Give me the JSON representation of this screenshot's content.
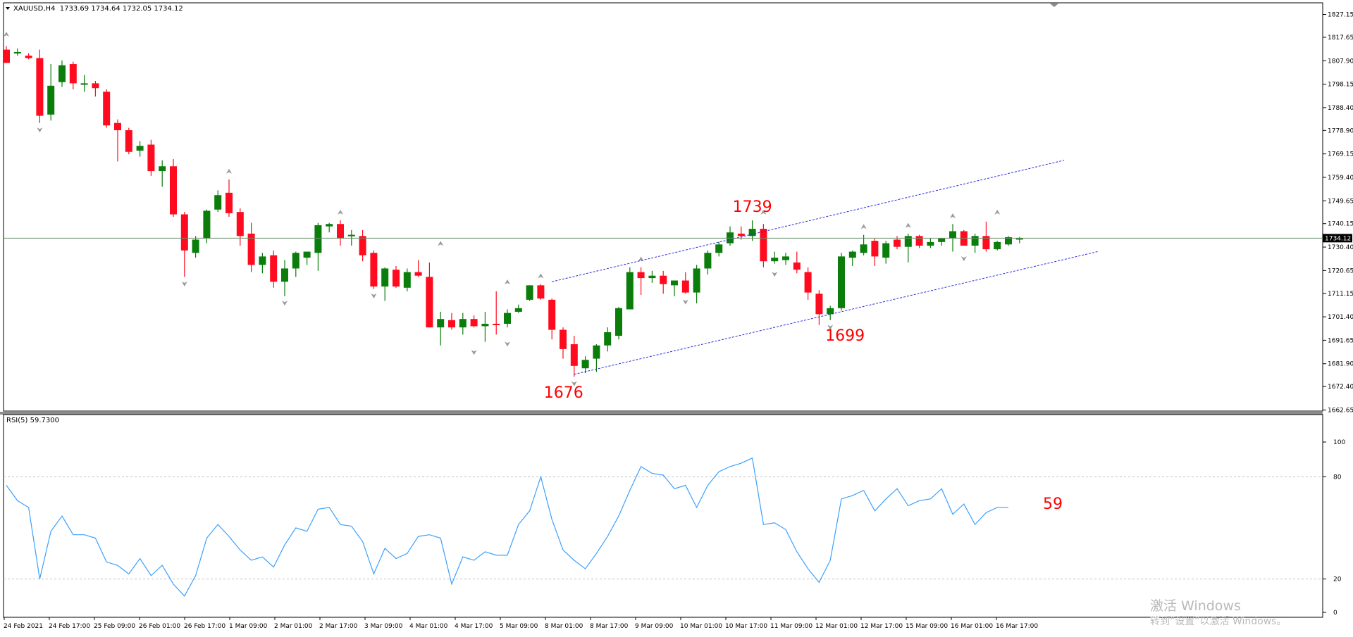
{
  "window": {
    "symbol_header": "XAUUSD,H4  1733.69 1734.64 1732.05 1734.12",
    "current_price_label": "1734.12"
  },
  "price_axis": {
    "labels": [
      "1827.15",
      "1817.65",
      "1807.90",
      "1798.15",
      "1788.40",
      "1778.90",
      "1769.15",
      "1759.40",
      "1749.65",
      "1740.15",
      "1730.40",
      "1720.65",
      "1711.15",
      "1701.40",
      "1691.65",
      "1681.90",
      "1672.40",
      "1662.65"
    ]
  },
  "rsi_panel": {
    "title": "RSI(5) 59.7300",
    "axis_labels": [
      "100",
      "80",
      "20",
      "0"
    ],
    "annotation": "59"
  },
  "time_axis": {
    "labels": [
      "24 Feb 2021",
      "24 Feb 17:00",
      "25 Feb 09:00",
      "26 Feb 01:00",
      "26 Feb 17:00",
      "1 Mar 09:00",
      "2 Mar 01:00",
      "2 Mar 17:00",
      "3 Mar 09:00",
      "4 Mar 01:00",
      "4 Mar 17:00",
      "5 Mar 09:00",
      "8 Mar 01:00",
      "8 Mar 17:00",
      "9 Mar 09:00",
      "10 Mar 01:00",
      "10 Mar 17:00",
      "11 Mar 09:00",
      "12 Mar 01:00",
      "12 Mar 17:00",
      "15 Mar 09:00",
      "16 Mar 01:00",
      "16 Mar 17:00"
    ]
  },
  "annotations": {
    "high": "1739",
    "low_first": "1676",
    "low_second": "1699"
  },
  "watermark": {
    "line1": "激活 Windows",
    "line2": "转到“设置”以激活 Windows。"
  },
  "colors": {
    "bull": "#0a7d0a",
    "bear": "#ff0a1e",
    "rsi_line": "#3aa0ff",
    "channel": "#2a2ae0",
    "annotation": "#ff0000",
    "price_line": "#6a8f6a"
  },
  "chart_data": [
    {
      "type": "candlestick",
      "title": "XAUUSD,H4",
      "ylim": [
        1662.65,
        1831.5
      ],
      "candles": [
        {
          "o": 1812.5,
          "h": 1814.0,
          "l": 1807.0,
          "c": 1807.0
        },
        {
          "o": 1811.0,
          "h": 1813.0,
          "l": 1810.0,
          "c": 1811.5
        },
        {
          "o": 1810.0,
          "h": 1811.0,
          "l": 1808.5,
          "c": 1809.0
        },
        {
          "o": 1809.0,
          "h": 1812.5,
          "l": 1782.0,
          "c": 1785.0
        },
        {
          "o": 1785.5,
          "h": 1806.5,
          "l": 1783.0,
          "c": 1797.5
        },
        {
          "o": 1799.0,
          "h": 1808.0,
          "l": 1797.0,
          "c": 1806.0
        },
        {
          "o": 1806.5,
          "h": 1807.5,
          "l": 1796.0,
          "c": 1798.5
        },
        {
          "o": 1798.0,
          "h": 1802.0,
          "l": 1795.0,
          "c": 1798.5
        },
        {
          "o": 1798.5,
          "h": 1799.5,
          "l": 1793.0,
          "c": 1796.5
        },
        {
          "o": 1795.0,
          "h": 1796.0,
          "l": 1780.0,
          "c": 1781.0
        },
        {
          "o": 1782.0,
          "h": 1783.5,
          "l": 1766.0,
          "c": 1779.0
        },
        {
          "o": 1779.0,
          "h": 1780.0,
          "l": 1769.0,
          "c": 1770.0
        },
        {
          "o": 1770.5,
          "h": 1774.5,
          "l": 1768.0,
          "c": 1772.5
        },
        {
          "o": 1773.0,
          "h": 1775.0,
          "l": 1760.0,
          "c": 1762.0
        },
        {
          "o": 1762.0,
          "h": 1766.5,
          "l": 1755.5,
          "c": 1764.0
        },
        {
          "o": 1764.0,
          "h": 1767.0,
          "l": 1743.0,
          "c": 1744.0
        },
        {
          "o": 1744.0,
          "h": 1745.0,
          "l": 1718.0,
          "c": 1729.0
        },
        {
          "o": 1728.0,
          "h": 1735.0,
          "l": 1726.0,
          "c": 1733.5
        },
        {
          "o": 1734.0,
          "h": 1746.0,
          "l": 1732.0,
          "c": 1745.5
        },
        {
          "o": 1746.0,
          "h": 1754.0,
          "l": 1745.0,
          "c": 1752.0
        },
        {
          "o": 1753.0,
          "h": 1758.5,
          "l": 1743.0,
          "c": 1744.5
        },
        {
          "o": 1745.0,
          "h": 1746.5,
          "l": 1731.0,
          "c": 1735.0
        },
        {
          "o": 1736.0,
          "h": 1740.5,
          "l": 1720.0,
          "c": 1723.0
        },
        {
          "o": 1723.0,
          "h": 1728.0,
          "l": 1719.5,
          "c": 1726.5
        },
        {
          "o": 1727.0,
          "h": 1729.0,
          "l": 1713.5,
          "c": 1716.0
        },
        {
          "o": 1716.0,
          "h": 1725.0,
          "l": 1710.0,
          "c": 1721.5
        },
        {
          "o": 1721.5,
          "h": 1728.5,
          "l": 1718.0,
          "c": 1728.0
        },
        {
          "o": 1726.0,
          "h": 1728.0,
          "l": 1723.0,
          "c": 1728.5
        },
        {
          "o": 1728.0,
          "h": 1740.5,
          "l": 1720.5,
          "c": 1739.5
        },
        {
          "o": 1739.0,
          "h": 1740.5,
          "l": 1736.5,
          "c": 1740.0
        },
        {
          "o": 1740.0,
          "h": 1741.5,
          "l": 1731.0,
          "c": 1734.0
        },
        {
          "o": 1735.0,
          "h": 1737.5,
          "l": 1731.0,
          "c": 1735.5
        },
        {
          "o": 1735.0,
          "h": 1737.5,
          "l": 1724.5,
          "c": 1727.0
        },
        {
          "o": 1728.0,
          "h": 1729.0,
          "l": 1713.0,
          "c": 1714.0
        },
        {
          "o": 1714.0,
          "h": 1722.0,
          "l": 1708.0,
          "c": 1721.5
        },
        {
          "o": 1721.0,
          "h": 1722.5,
          "l": 1713.5,
          "c": 1714.0
        },
        {
          "o": 1713.5,
          "h": 1721.5,
          "l": 1712.0,
          "c": 1720.0
        },
        {
          "o": 1720.0,
          "h": 1725.0,
          "l": 1718.0,
          "c": 1718.5
        },
        {
          "o": 1718.0,
          "h": 1724.0,
          "l": 1697.0,
          "c": 1697.0
        },
        {
          "o": 1697.0,
          "h": 1703.5,
          "l": 1689.5,
          "c": 1700.5
        },
        {
          "o": 1700.0,
          "h": 1703.0,
          "l": 1696.0,
          "c": 1697.0
        },
        {
          "o": 1697.0,
          "h": 1703.0,
          "l": 1694.0,
          "c": 1700.5
        },
        {
          "o": 1700.5,
          "h": 1702.0,
          "l": 1697.0,
          "c": 1697.5
        },
        {
          "o": 1697.5,
          "h": 1703.5,
          "l": 1691.0,
          "c": 1698.5
        },
        {
          "o": 1698.5,
          "h": 1712.0,
          "l": 1694.0,
          "c": 1698.0
        },
        {
          "o": 1698.5,
          "h": 1704.5,
          "l": 1697.0,
          "c": 1703.0
        },
        {
          "o": 1703.5,
          "h": 1706.5,
          "l": 1703.0,
          "c": 1705.0
        },
        {
          "o": 1708.5,
          "h": 1714.5,
          "l": 1708.0,
          "c": 1714.5
        },
        {
          "o": 1714.5,
          "h": 1715.0,
          "l": 1708.5,
          "c": 1709.0
        },
        {
          "o": 1708.5,
          "h": 1709.0,
          "l": 1692.0,
          "c": 1696.0
        },
        {
          "o": 1696.0,
          "h": 1697.0,
          "l": 1684.0,
          "c": 1688.0
        },
        {
          "o": 1690.0,
          "h": 1693.5,
          "l": 1676.5,
          "c": 1681.0
        },
        {
          "o": 1680.0,
          "h": 1685.0,
          "l": 1678.0,
          "c": 1683.5
        },
        {
          "o": 1684.0,
          "h": 1690.0,
          "l": 1678.5,
          "c": 1689.5
        },
        {
          "o": 1689.5,
          "h": 1697.0,
          "l": 1687.0,
          "c": 1695.0
        },
        {
          "o": 1693.5,
          "h": 1705.5,
          "l": 1692.0,
          "c": 1705.0
        },
        {
          "o": 1704.5,
          "h": 1722.0,
          "l": 1704.5,
          "c": 1720.0
        },
        {
          "o": 1720.0,
          "h": 1722.0,
          "l": 1710.5,
          "c": 1717.5
        },
        {
          "o": 1717.5,
          "h": 1720.5,
          "l": 1715.5,
          "c": 1718.5
        },
        {
          "o": 1718.5,
          "h": 1720.5,
          "l": 1711.0,
          "c": 1715.0
        },
        {
          "o": 1714.5,
          "h": 1716.0,
          "l": 1710.0,
          "c": 1716.5
        },
        {
          "o": 1716.5,
          "h": 1720.0,
          "l": 1711.0,
          "c": 1711.5
        },
        {
          "o": 1711.5,
          "h": 1723.0,
          "l": 1707.0,
          "c": 1721.5
        },
        {
          "o": 1721.5,
          "h": 1729.0,
          "l": 1719.0,
          "c": 1728.0
        },
        {
          "o": 1728.0,
          "h": 1732.5,
          "l": 1726.5,
          "c": 1731.5
        },
        {
          "o": 1732.0,
          "h": 1739.0,
          "l": 1731.0,
          "c": 1736.5
        },
        {
          "o": 1736.0,
          "h": 1739.0,
          "l": 1733.5,
          "c": 1735.0
        },
        {
          "o": 1735.0,
          "h": 1741.5,
          "l": 1733.0,
          "c": 1738.0
        },
        {
          "o": 1738.0,
          "h": 1740.0,
          "l": 1722.0,
          "c": 1724.5
        },
        {
          "o": 1724.5,
          "h": 1728.5,
          "l": 1723.5,
          "c": 1726.0
        },
        {
          "o": 1725.0,
          "h": 1728.0,
          "l": 1723.0,
          "c": 1726.5
        },
        {
          "o": 1724.0,
          "h": 1728.5,
          "l": 1719.5,
          "c": 1721.0
        },
        {
          "o": 1720.0,
          "h": 1722.0,
          "l": 1708.5,
          "c": 1711.5
        },
        {
          "o": 1711.0,
          "h": 1712.5,
          "l": 1698.0,
          "c": 1702.5
        },
        {
          "o": 1702.5,
          "h": 1706.0,
          "l": 1700.0,
          "c": 1705.0
        },
        {
          "o": 1705.0,
          "h": 1728.0,
          "l": 1704.0,
          "c": 1726.5
        },
        {
          "o": 1726.0,
          "h": 1729.0,
          "l": 1722.5,
          "c": 1728.5
        },
        {
          "o": 1728.0,
          "h": 1735.5,
          "l": 1727.0,
          "c": 1731.5
        },
        {
          "o": 1733.0,
          "h": 1734.0,
          "l": 1722.5,
          "c": 1726.5
        },
        {
          "o": 1726.0,
          "h": 1733.0,
          "l": 1723.5,
          "c": 1732.0
        },
        {
          "o": 1733.5,
          "h": 1735.0,
          "l": 1729.5,
          "c": 1730.5
        },
        {
          "o": 1730.5,
          "h": 1736.0,
          "l": 1724.0,
          "c": 1735.0
        },
        {
          "o": 1735.0,
          "h": 1735.5,
          "l": 1730.0,
          "c": 1731.0
        },
        {
          "o": 1731.0,
          "h": 1734.0,
          "l": 1730.0,
          "c": 1732.5
        },
        {
          "o": 1732.5,
          "h": 1734.0,
          "l": 1731.0,
          "c": 1734.0
        },
        {
          "o": 1734.0,
          "h": 1740.0,
          "l": 1728.5,
          "c": 1737.0
        },
        {
          "o": 1737.0,
          "h": 1737.5,
          "l": 1731.0,
          "c": 1731.0
        },
        {
          "o": 1731.0,
          "h": 1736.0,
          "l": 1728.0,
          "c": 1735.0
        },
        {
          "o": 1735.0,
          "h": 1741.0,
          "l": 1728.5,
          "c": 1729.5
        },
        {
          "o": 1729.5,
          "h": 1733.0,
          "l": 1729.0,
          "c": 1732.5
        },
        {
          "o": 1731.5,
          "h": 1735.0,
          "l": 1731.0,
          "c": 1734.5
        },
        {
          "o": 1733.7,
          "h": 1734.6,
          "l": 1732.0,
          "c": 1734.1
        }
      ],
      "fractals_up": [
        {
          "i": 0,
          "p": 1818.5
        },
        {
          "i": 20,
          "p": 1761.5
        },
        {
          "i": 30,
          "p": 1744.5
        },
        {
          "i": 39,
          "p": 1731.5
        },
        {
          "i": 45,
          "p": 1715.5
        },
        {
          "i": 48,
          "p": 1718.0
        },
        {
          "i": 57,
          "p": 1725.0
        },
        {
          "i": 68,
          "p": 1744.5
        },
        {
          "i": 77,
          "p": 1738.5
        },
        {
          "i": 81,
          "p": 1739.0
        },
        {
          "i": 85,
          "p": 1743.0
        },
        {
          "i": 89,
          "p": 1744.5
        }
      ],
      "fractals_down": [
        {
          "i": 3,
          "p": 1779.5
        },
        {
          "i": 16,
          "p": 1715.5
        },
        {
          "i": 25,
          "p": 1707.5
        },
        {
          "i": 33,
          "p": 1710.5
        },
        {
          "i": 42,
          "p": 1687.0
        },
        {
          "i": 45,
          "p": 1690.5
        },
        {
          "i": 51,
          "p": 1674.0
        },
        {
          "i": 61,
          "p": 1708.0
        },
        {
          "i": 69,
          "p": 1719.5
        },
        {
          "i": 74,
          "p": 1697.5
        },
        {
          "i": 86,
          "p": 1726.0
        }
      ],
      "channel": [
        {
          "x0": 51.0,
          "p0": 1677.5,
          "x1": 98.0,
          "p1": 1728.5
        },
        {
          "x0": 49.0,
          "p0": 1716.0,
          "x1": 95.0,
          "p1": 1766.5
        }
      ],
      "current_price": 1734.12
    },
    {
      "type": "line",
      "title": "RSI(5) 59.7300",
      "ylim": [
        0,
        100
      ],
      "levels": [
        80,
        20
      ],
      "series": [
        {
          "values": [
            75,
            66,
            62,
            20,
            48,
            57,
            46,
            46,
            44,
            30,
            28,
            23,
            32,
            22,
            28,
            17,
            10,
            22,
            44,
            52,
            45,
            37,
            31,
            33,
            27,
            40,
            50,
            48,
            61,
            62,
            52,
            51,
            42,
            23,
            38,
            32,
            35,
            45,
            46,
            44,
            17,
            33,
            31,
            36,
            34,
            34,
            52,
            60,
            80,
            55,
            37,
            31,
            26,
            35,
            45,
            57,
            72,
            86,
            82,
            81,
            73,
            75,
            62,
            75,
            83,
            86,
            88,
            91,
            52,
            53,
            49,
            36,
            26,
            18,
            31,
            67,
            69,
            72,
            60,
            67,
            73,
            63,
            66,
            67,
            73,
            58,
            64,
            52,
            59,
            62,
            62
          ]
        }
      ]
    }
  ]
}
